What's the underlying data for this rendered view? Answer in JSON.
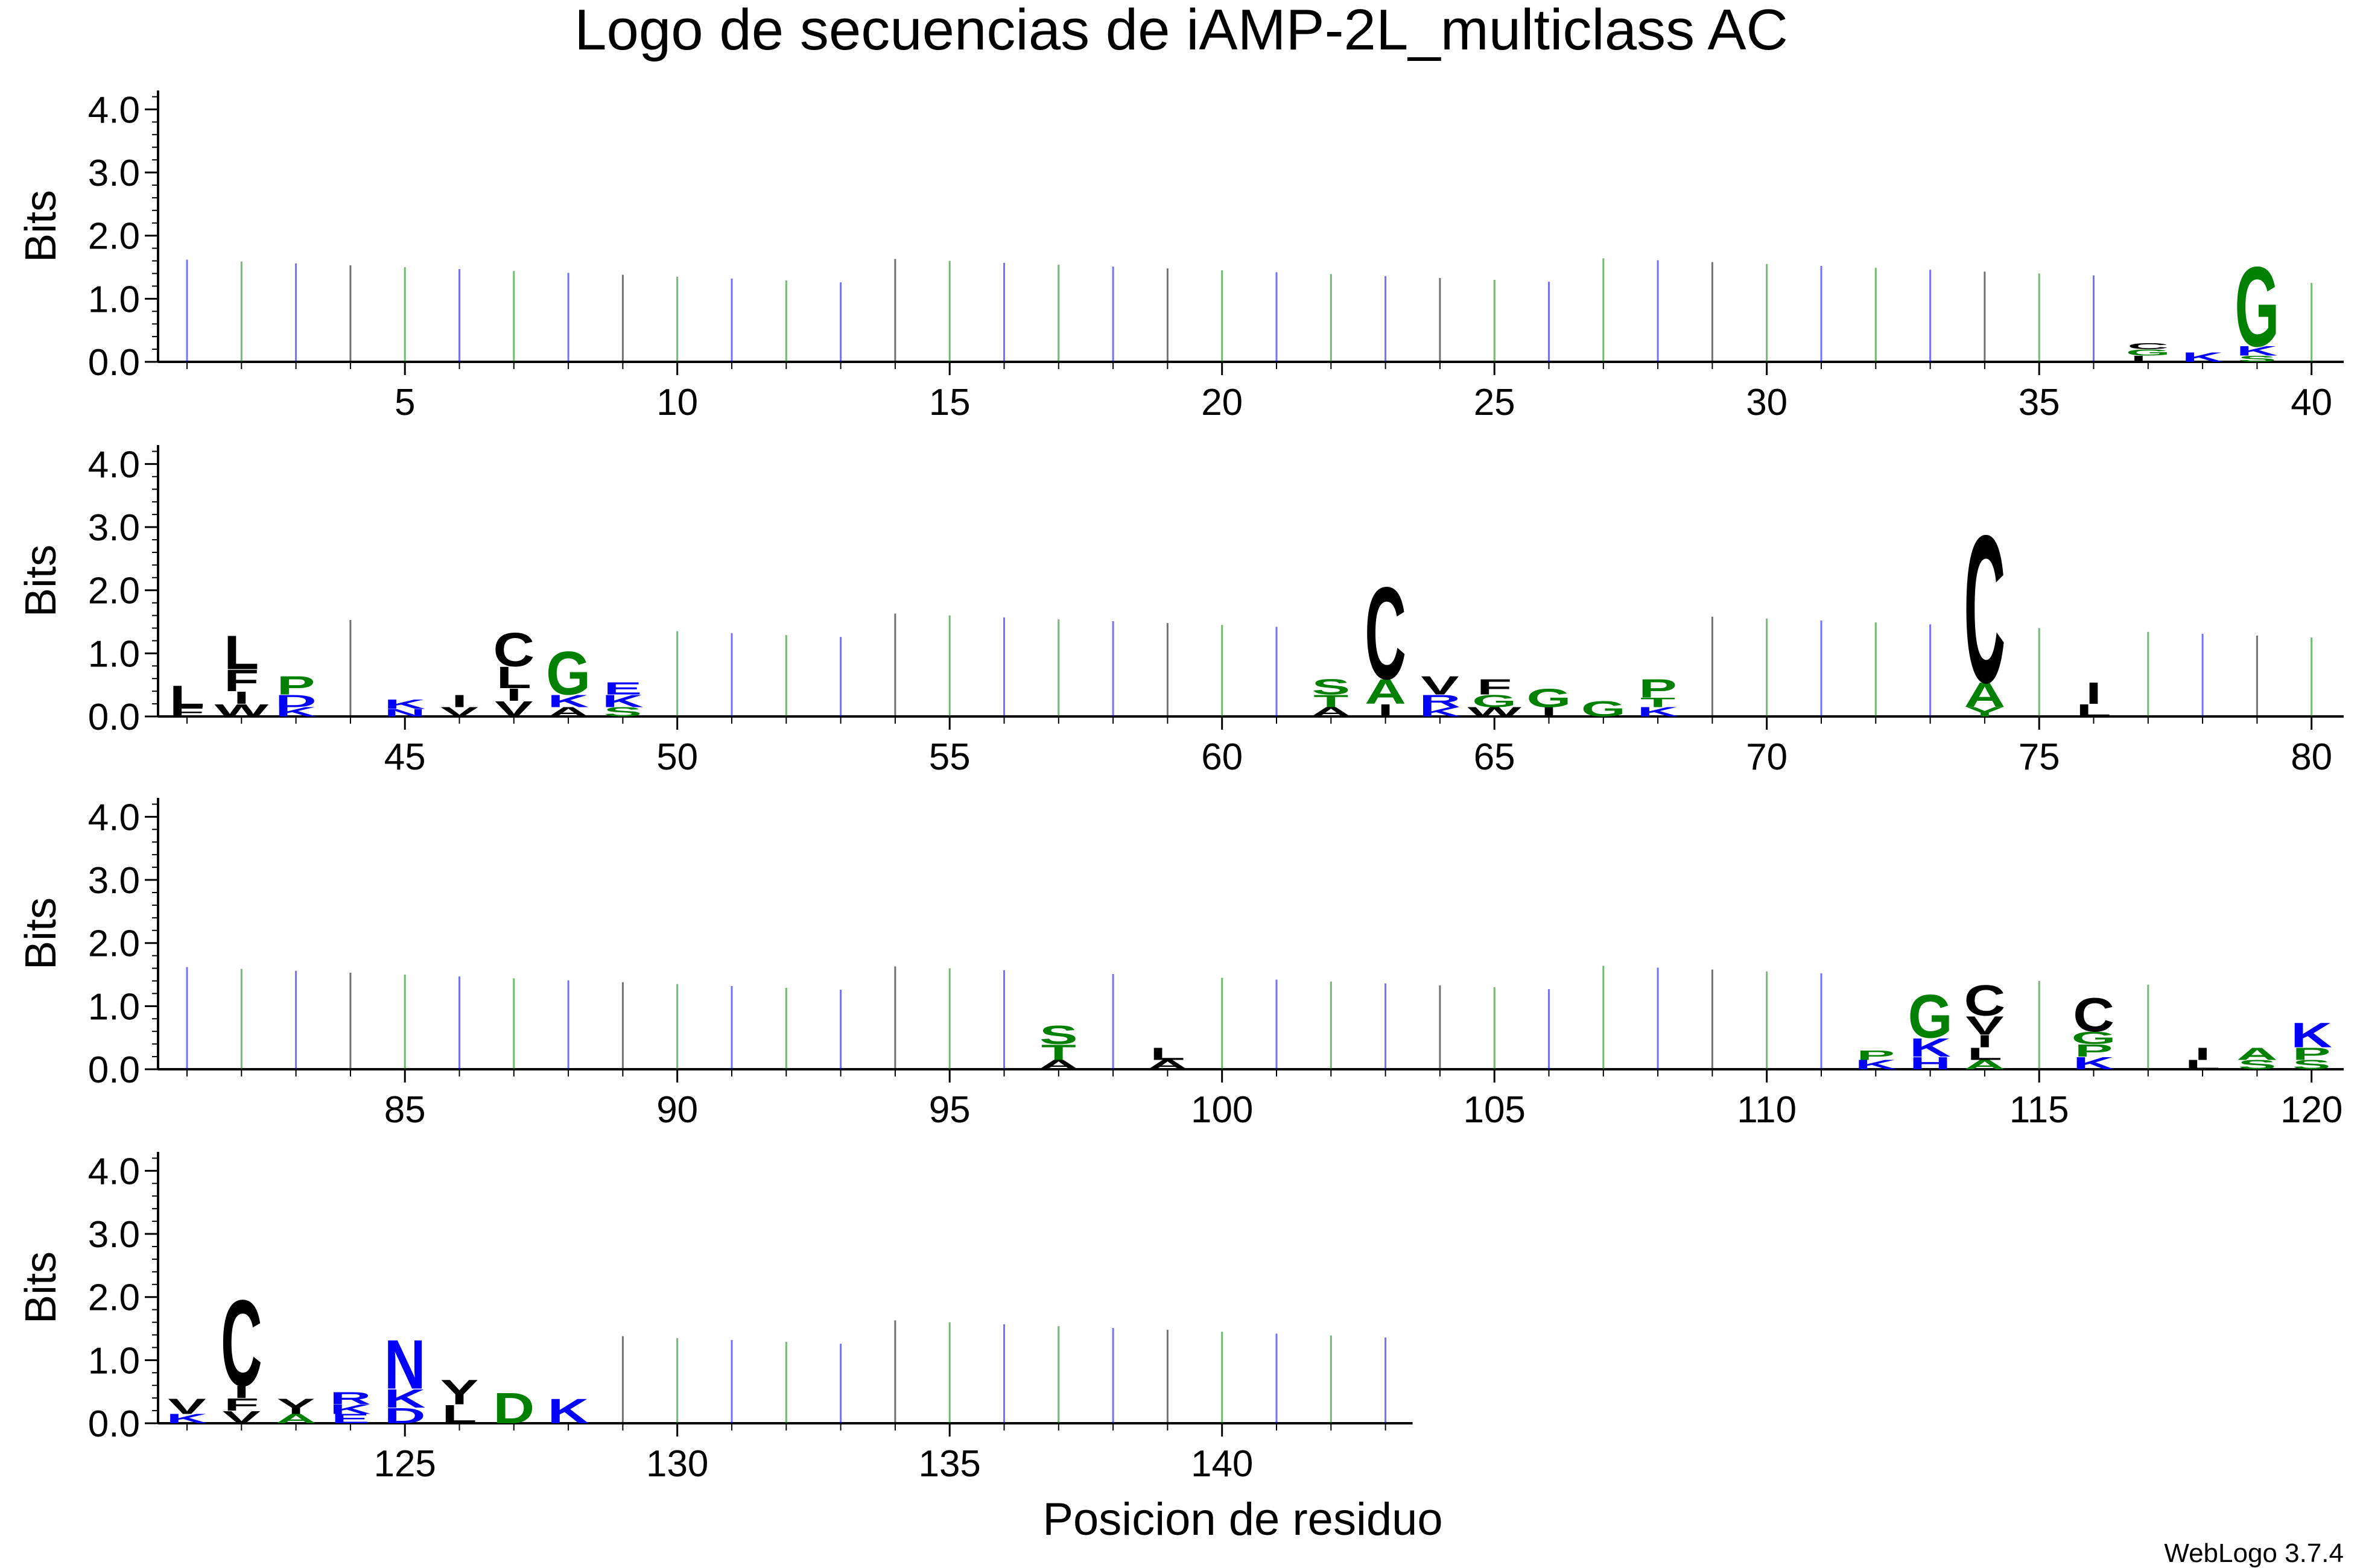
{
  "chart_data": {
    "type": "sequence-logo",
    "title": "Logo de secuencias de iAMP-2L_multiclass AC",
    "xlabel": "Posicion de residuo",
    "ylabel": "Bits",
    "ylim": [
      0,
      4.3
    ],
    "yticks": [
      "0.0",
      "1.0",
      "2.0",
      "3.0",
      "4.0"
    ],
    "footer": "WebLogo 3.7.4",
    "colors": {
      "hydrophobic": "#000000",
      "polar": "#008000",
      "charged": "#0000ff"
    },
    "panels": [
      {
        "start": 1,
        "end": 40,
        "xticks": [
          "5",
          "10",
          "15",
          "20",
          "25",
          "30",
          "35",
          "40"
        ],
        "stacks": [
          {
            "pos": 39,
            "letters": [
              {
                "aa": "G",
                "bits": 1.3,
                "color": "#008000"
              },
              {
                "aa": "K",
                "bits": 0.15,
                "color": "#0000ff"
              },
              {
                "aa": "S",
                "bits": 0.1,
                "color": "#008000"
              }
            ]
          },
          {
            "pos": 38,
            "letters": [
              {
                "aa": "K",
                "bits": 0.15,
                "color": "#0000ff"
              }
            ]
          },
          {
            "pos": 37,
            "letters": [
              {
                "aa": "C",
                "bits": 0.1,
                "color": "#000000"
              },
              {
                "aa": "G",
                "bits": 0.1,
                "color": "#008000"
              },
              {
                "aa": "L",
                "bits": 0.1,
                "color": "#000000"
              }
            ]
          }
        ]
      },
      {
        "start": 41,
        "end": 80,
        "xticks": [
          "45",
          "50",
          "55",
          "60",
          "65",
          "70",
          "75",
          "80"
        ],
        "stacks": [
          {
            "pos": 41,
            "letters": [
              {
                "aa": "L",
                "bits": 0.35,
                "color": "#000000"
              },
              {
                "aa": "F",
                "bits": 0.15,
                "color": "#000000"
              }
            ]
          },
          {
            "pos": 42,
            "letters": [
              {
                "aa": "L",
                "bits": 0.55,
                "color": "#000000"
              },
              {
                "aa": "F",
                "bits": 0.35,
                "color": "#000000"
              },
              {
                "aa": "I",
                "bits": 0.2,
                "color": "#000000"
              },
              {
                "aa": "W",
                "bits": 0.2,
                "color": "#000000"
              }
            ]
          },
          {
            "pos": 43,
            "letters": [
              {
                "aa": "P",
                "bits": 0.3,
                "color": "#008000"
              },
              {
                "aa": "D",
                "bits": 0.2,
                "color": "#0000ff"
              },
              {
                "aa": "K",
                "bits": 0.15,
                "color": "#0000ff"
              }
            ]
          },
          {
            "pos": 45,
            "letters": [
              {
                "aa": "K",
                "bits": 0.15,
                "color": "#0000ff"
              },
              {
                "aa": "N",
                "bits": 0.12,
                "color": "#0000ff"
              }
            ]
          },
          {
            "pos": 46,
            "letters": [
              {
                "aa": "I",
                "bits": 0.2,
                "color": "#000000"
              },
              {
                "aa": "V",
                "bits": 0.15,
                "color": "#000000"
              }
            ]
          },
          {
            "pos": 47,
            "letters": [
              {
                "aa": "C",
                "bits": 0.55,
                "color": "#000000"
              },
              {
                "aa": "L",
                "bits": 0.35,
                "color": "#000000"
              },
              {
                "aa": "I",
                "bits": 0.2,
                "color": "#000000"
              },
              {
                "aa": "V",
                "bits": 0.25,
                "color": "#000000"
              }
            ]
          },
          {
            "pos": 48,
            "letters": [
              {
                "aa": "G",
                "bits": 0.7,
                "color": "#008000"
              },
              {
                "aa": "K",
                "bits": 0.2,
                "color": "#0000ff"
              },
              {
                "aa": "A",
                "bits": 0.15,
                "color": "#000000"
              }
            ]
          },
          {
            "pos": 49,
            "letters": [
              {
                "aa": "E",
                "bits": 0.2,
                "color": "#0000ff"
              },
              {
                "aa": "K",
                "bits": 0.2,
                "color": "#0000ff"
              },
              {
                "aa": "S",
                "bits": 0.15,
                "color": "#008000"
              }
            ]
          },
          {
            "pos": 62,
            "letters": [
              {
                "aa": "S",
                "bits": 0.25,
                "color": "#008000"
              },
              {
                "aa": "T",
                "bits": 0.2,
                "color": "#008000"
              },
              {
                "aa": "A",
                "bits": 0.15,
                "color": "#000000"
              }
            ]
          },
          {
            "pos": 63,
            "letters": [
              {
                "aa": "C",
                "bits": 1.5,
                "color": "#000000"
              },
              {
                "aa": "A",
                "bits": 0.4,
                "color": "#008000"
              },
              {
                "aa": "I",
                "bits": 0.2,
                "color": "#000000"
              }
            ]
          },
          {
            "pos": 64,
            "letters": [
              {
                "aa": "V",
                "bits": 0.3,
                "color": "#000000"
              },
              {
                "aa": "R",
                "bits": 0.2,
                "color": "#0000ff"
              },
              {
                "aa": "K",
                "bits": 0.15,
                "color": "#0000ff"
              }
            ]
          },
          {
            "pos": 65,
            "letters": [
              {
                "aa": "F",
                "bits": 0.25,
                "color": "#000000"
              },
              {
                "aa": "G",
                "bits": 0.2,
                "color": "#008000"
              },
              {
                "aa": "W",
                "bits": 0.15,
                "color": "#000000"
              }
            ]
          },
          {
            "pos": 66,
            "letters": [
              {
                "aa": "G",
                "bits": 0.3,
                "color": "#008000"
              },
              {
                "aa": "I",
                "bits": 0.15,
                "color": "#000000"
              }
            ]
          },
          {
            "pos": 67,
            "letters": [
              {
                "aa": "G",
                "bits": 0.25,
                "color": "#008000"
              }
            ]
          },
          {
            "pos": 68,
            "letters": [
              {
                "aa": "P",
                "bits": 0.3,
                "color": "#008000"
              },
              {
                "aa": "T",
                "bits": 0.15,
                "color": "#008000"
              },
              {
                "aa": "K",
                "bits": 0.15,
                "color": "#0000ff"
              }
            ]
          },
          {
            "pos": 74,
            "letters": [
              {
                "aa": "C",
                "bits": 2.4,
                "color": "#000000"
              },
              {
                "aa": "A",
                "bits": 0.4,
                "color": "#008000"
              },
              {
                "aa": "Y",
                "bits": 0.15,
                "color": "#008000"
              }
            ]
          },
          {
            "pos": 76,
            "letters": [
              {
                "aa": "I",
                "bits": 0.35,
                "color": "#000000"
              },
              {
                "aa": "L",
                "bits": 0.2,
                "color": "#000000"
              }
            ]
          }
        ]
      },
      {
        "start": 81,
        "end": 120,
        "xticks": [
          "85",
          "90",
          "95",
          "100",
          "105",
          "110",
          "115",
          "120"
        ],
        "stacks": [
          {
            "pos": 97,
            "letters": [
              {
                "aa": "S",
                "bits": 0.3,
                "color": "#008000"
              },
              {
                "aa": "T",
                "bits": 0.25,
                "color": "#008000"
              },
              {
                "aa": "A",
                "bits": 0.15,
                "color": "#000000"
              }
            ]
          },
          {
            "pos": 99,
            "letters": [
              {
                "aa": "L",
                "bits": 0.2,
                "color": "#000000"
              },
              {
                "aa": "A",
                "bits": 0.15,
                "color": "#000000"
              }
            ]
          },
          {
            "pos": 112,
            "letters": [
              {
                "aa": "P",
                "bits": 0.15,
                "color": "#008000"
              },
              {
                "aa": "K",
                "bits": 0.15,
                "color": "#0000ff"
              }
            ]
          },
          {
            "pos": 113,
            "letters": [
              {
                "aa": "G",
                "bits": 0.7,
                "color": "#008000"
              },
              {
                "aa": "K",
                "bits": 0.3,
                "color": "#0000ff"
              },
              {
                "aa": "H",
                "bits": 0.2,
                "color": "#0000ff"
              }
            ]
          },
          {
            "pos": 114,
            "letters": [
              {
                "aa": "C",
                "bits": 0.5,
                "color": "#000000"
              },
              {
                "aa": "V",
                "bits": 0.3,
                "color": "#000000"
              },
              {
                "aa": "I",
                "bits": 0.2,
                "color": "#000000"
              },
              {
                "aa": "L",
                "bits": 0.2,
                "color": "#000000"
              },
              {
                "aa": "A",
                "bits": 0.15,
                "color": "#008000"
              }
            ]
          },
          {
            "pos": 116,
            "letters": [
              {
                "aa": "C",
                "bits": 0.55,
                "color": "#000000"
              },
              {
                "aa": "G",
                "bits": 0.2,
                "color": "#008000"
              },
              {
                "aa": "P",
                "bits": 0.2,
                "color": "#008000"
              },
              {
                "aa": "K",
                "bits": 0.2,
                "color": "#0000ff"
              }
            ]
          },
          {
            "pos": 118,
            "letters": [
              {
                "aa": "I",
                "bits": 0.2,
                "color": "#000000"
              },
              {
                "aa": "L",
                "bits": 0.15,
                "color": "#000000"
              }
            ]
          },
          {
            "pos": 119,
            "letters": [
              {
                "aa": "A",
                "bits": 0.2,
                "color": "#008000"
              },
              {
                "aa": "S",
                "bits": 0.15,
                "color": "#008000"
              }
            ]
          },
          {
            "pos": 120,
            "letters": [
              {
                "aa": "K",
                "bits": 0.4,
                "color": "#0000ff"
              },
              {
                "aa": "P",
                "bits": 0.2,
                "color": "#008000"
              },
              {
                "aa": "S",
                "bits": 0.15,
                "color": "#008000"
              }
            ]
          }
        ]
      },
      {
        "start": 121,
        "end": 143,
        "xticks": [
          "125",
          "130",
          "135",
          "140"
        ],
        "stacks": [
          {
            "pos": 121,
            "letters": [
              {
                "aa": "V",
                "bits": 0.25,
                "color": "#000000"
              },
              {
                "aa": "K",
                "bits": 0.15,
                "color": "#0000ff"
              }
            ]
          },
          {
            "pos": 122,
            "letters": [
              {
                "aa": "C",
                "bits": 1.4,
                "color": "#000000"
              },
              {
                "aa": "I",
                "bits": 0.2,
                "color": "#000000"
              },
              {
                "aa": "F",
                "bits": 0.2,
                "color": "#000000"
              },
              {
                "aa": "V",
                "bits": 0.2,
                "color": "#000000"
              }
            ]
          },
          {
            "pos": 123,
            "letters": [
              {
                "aa": "Y",
                "bits": 0.25,
                "color": "#000000"
              },
              {
                "aa": "A",
                "bits": 0.15,
                "color": "#008000"
              }
            ]
          },
          {
            "pos": 124,
            "letters": [
              {
                "aa": "R",
                "bits": 0.2,
                "color": "#0000ff"
              },
              {
                "aa": "K",
                "bits": 0.15,
                "color": "#0000ff"
              },
              {
                "aa": "E",
                "bits": 0.15,
                "color": "#0000ff"
              }
            ]
          },
          {
            "pos": 125,
            "letters": [
              {
                "aa": "N",
                "bits": 0.8,
                "color": "#0000ff"
              },
              {
                "aa": "K",
                "bits": 0.3,
                "color": "#0000ff"
              },
              {
                "aa": "D",
                "bits": 0.25,
                "color": "#0000ff"
              }
            ]
          },
          {
            "pos": 126,
            "letters": [
              {
                "aa": "Y",
                "bits": 0.4,
                "color": "#000000"
              },
              {
                "aa": "L",
                "bits": 0.3,
                "color": "#000000"
              }
            ]
          },
          {
            "pos": 127,
            "letters": [
              {
                "aa": "D",
                "bits": 0.5,
                "color": "#008000"
              }
            ]
          },
          {
            "pos": 128,
            "letters": [
              {
                "aa": "K",
                "bits": 0.4,
                "color": "#0000ff"
              }
            ]
          }
        ]
      }
    ]
  }
}
